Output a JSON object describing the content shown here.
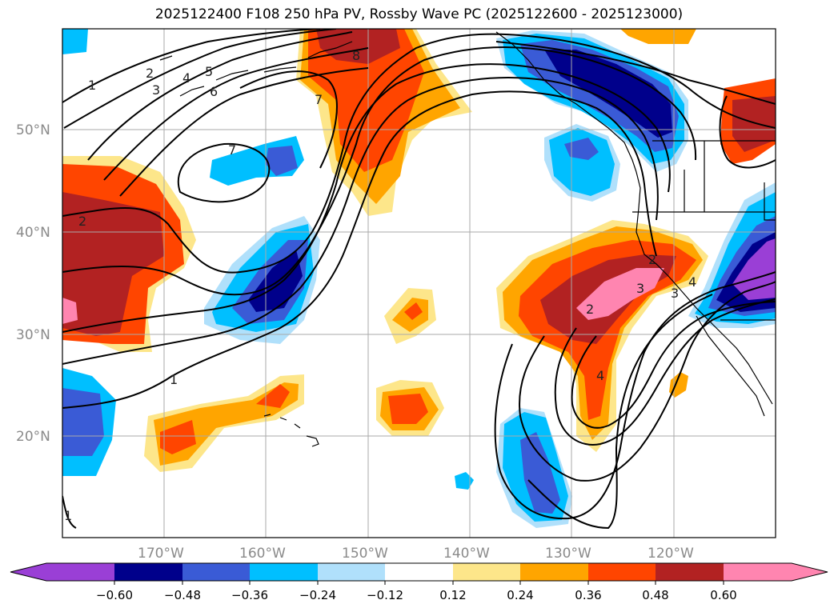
{
  "title": "2025122400 F108 250 hPa PV, Rossby Wave PC (2025122600 - 2025123000)",
  "lat_labels": [
    "50°N",
    "40°N",
    "30°N",
    "20°N"
  ],
  "lon_labels": [
    "170°W",
    "160°W",
    "150°W",
    "140°W",
    "130°W",
    "120°W"
  ],
  "colorbar": {
    "tick_labels": [
      "−0.60",
      "−0.48",
      "−0.36",
      "−0.24",
      "−0.12",
      "0.12",
      "0.24",
      "0.36",
      "0.48",
      "0.60"
    ],
    "colors": [
      "#9a3fd6",
      "#00008b",
      "#3a5bd6",
      "#00bfff",
      "#b0e0fb",
      "#ffffff",
      "#fde68a",
      "#ffa500",
      "#ff4500",
      "#b22222",
      "#ff85b0"
    ]
  },
  "contour_labels": [
    "1",
    "2",
    "3",
    "4",
    "5",
    "6",
    "7",
    "8",
    "7",
    "2",
    "1",
    "1",
    "2",
    "3",
    "4",
    "2",
    "3",
    "4"
  ]
}
